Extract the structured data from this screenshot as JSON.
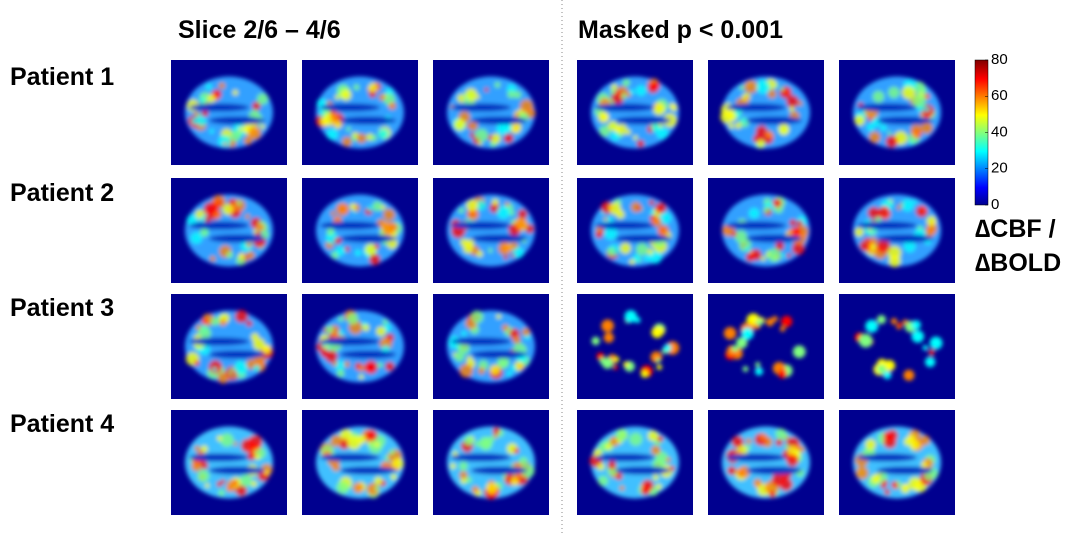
{
  "panels": [
    {
      "title": "Slice 2/6 – 4/6"
    },
    {
      "title": "Masked p < 0.001"
    }
  ],
  "rows": [
    {
      "label": "Patient 1"
    },
    {
      "label": "Patient 2"
    },
    {
      "label": "Patient 3"
    },
    {
      "label": "Patient 4"
    }
  ],
  "colorbar": {
    "lim": [
      0,
      80
    ],
    "ticks": [
      0,
      20,
      40,
      60,
      80
    ],
    "label": [
      "∆CBF /",
      "∆BOLD"
    ]
  }
}
